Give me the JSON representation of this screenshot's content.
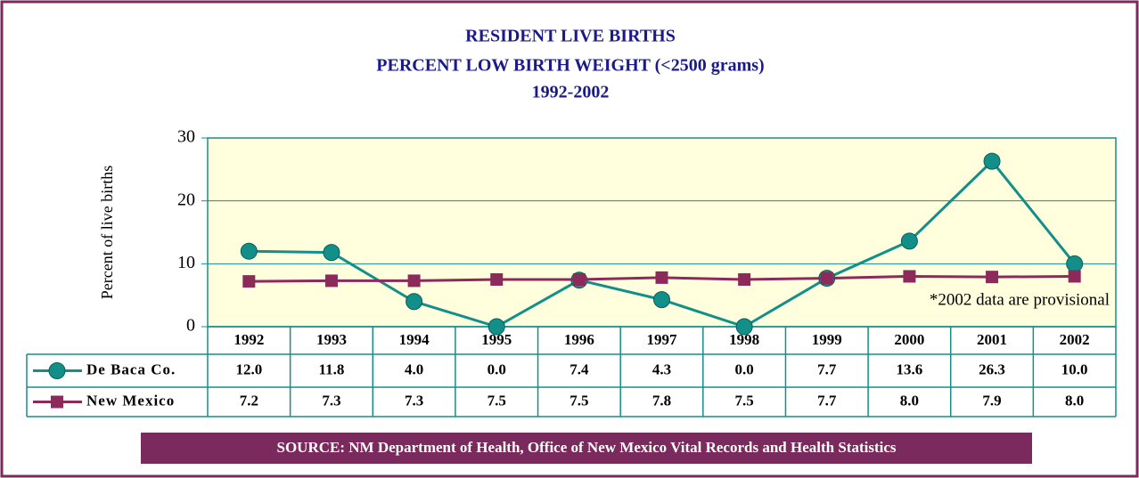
{
  "chart_data": {
    "type": "line",
    "title": [
      "RESIDENT LIVE BIRTHS",
      "PERCENT LOW BIRTH WEIGHT (<2500 grams)",
      "1992-2002"
    ],
    "y_label": "Percent of live births",
    "annotation": "*2002 data are provisional",
    "source": "SOURCE: NM Department of Health, Office of New Mexico Vital Records and  Health Statistics",
    "categories": [
      "1992",
      "1993",
      "1994",
      "1995",
      "1996",
      "1997",
      "1998",
      "1999",
      "2000",
      "2001",
      "2002"
    ],
    "series": [
      {
        "name": "De Baca Co.",
        "color": "#138f8a",
        "marker": "circle",
        "values": [
          12.0,
          11.8,
          4.0,
          0.0,
          7.4,
          4.3,
          0.0,
          7.7,
          13.6,
          26.3,
          10.0
        ],
        "value_labels": [
          "12.0",
          "11.8",
          "4.0",
          "0.0",
          "7.4",
          "4.3",
          "0.0",
          "7.7",
          "13.6",
          "26.3",
          "10.0"
        ]
      },
      {
        "name": "New Mexico",
        "color": "#8c2a5c",
        "marker": "square",
        "values": [
          7.2,
          7.3,
          7.3,
          7.5,
          7.5,
          7.8,
          7.5,
          7.7,
          8.0,
          7.9,
          8.0
        ],
        "value_labels": [
          "7.2",
          "7.3",
          "7.3",
          "7.5",
          "7.5",
          "7.8",
          "7.5",
          "7.7",
          "8.0",
          "7.9",
          "8.0"
        ]
      }
    ],
    "ylim": [
      0,
      30
    ],
    "yticks": [
      0,
      10,
      20,
      30
    ],
    "grid": true
  }
}
